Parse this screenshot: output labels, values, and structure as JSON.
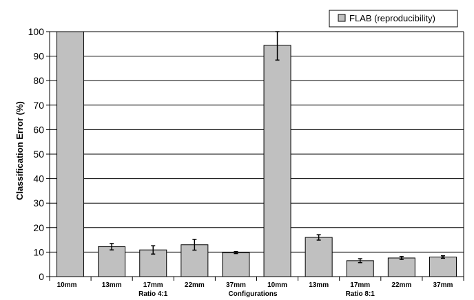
{
  "chart_data": {
    "type": "bar",
    "ylabel": "Classification Error (%)",
    "xlabel": "Configurations",
    "ylim": [
      0,
      100
    ],
    "yticks": [
      0,
      10,
      20,
      30,
      40,
      50,
      60,
      70,
      80,
      90,
      100
    ],
    "grid": true,
    "legend_position": "top-right",
    "categories": [
      "10mm",
      "13mm",
      "17mm",
      "22mm",
      "37mm",
      "10mm",
      "13mm",
      "17mm",
      "22mm",
      "37mm"
    ],
    "groups": [
      {
        "label": "Ratio 4:1",
        "categories_index": [
          0,
          1,
          2,
          3,
          4
        ]
      },
      {
        "label": "Ratio 8:1",
        "categories_index": [
          5,
          6,
          7,
          8,
          9
        ]
      }
    ],
    "series": [
      {
        "name": "FLAB (reproducibility)",
        "color": "#c0c0c0",
        "values": [
          100,
          12.2,
          10.9,
          13.0,
          9.8,
          94.4,
          16.0,
          6.5,
          7.6,
          8.0
        ],
        "error": [
          0,
          1.3,
          1.7,
          2.2,
          0.4,
          6.0,
          1.1,
          0.8,
          0.6,
          0.5
        ]
      }
    ]
  }
}
